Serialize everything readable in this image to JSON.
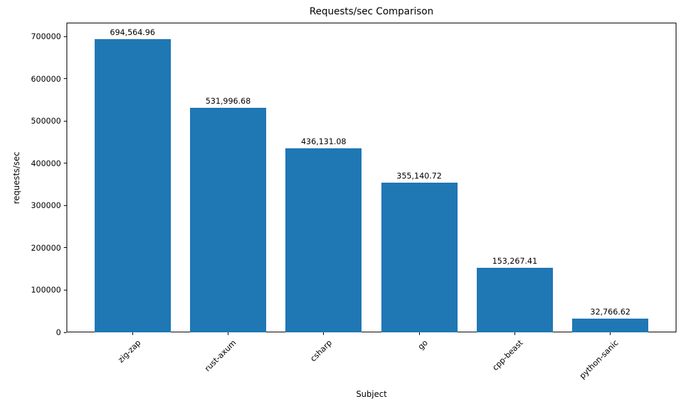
{
  "chart_data": {
    "type": "bar",
    "title": "Requests/sec Comparison",
    "xlabel": "Subject",
    "ylabel": "requests/sec",
    "categories": [
      "zig-zap",
      "rust-axum",
      "csharp",
      "go",
      "cpp-beast",
      "python-sanic"
    ],
    "values": [
      694564.96,
      531996.68,
      436131.08,
      355140.72,
      153267.41,
      32766.62
    ],
    "bar_value_labels": [
      "694,564.96",
      "531,996.68",
      "436,131.08",
      "355,140.72",
      "153,267.41",
      "32,766.62"
    ],
    "bar_color": "#1f77b4",
    "text_color": "#000000",
    "ylim": [
      0,
      733333
    ],
    "yticks": [
      0,
      100000,
      200000,
      300000,
      400000,
      500000,
      600000,
      700000
    ],
    "ytick_labels": [
      "0",
      "100000",
      "200000",
      "300000",
      "400000",
      "500000",
      "600000",
      "700000"
    ],
    "xtick_rotation_deg": 45,
    "grid": false,
    "legend": "none"
  }
}
